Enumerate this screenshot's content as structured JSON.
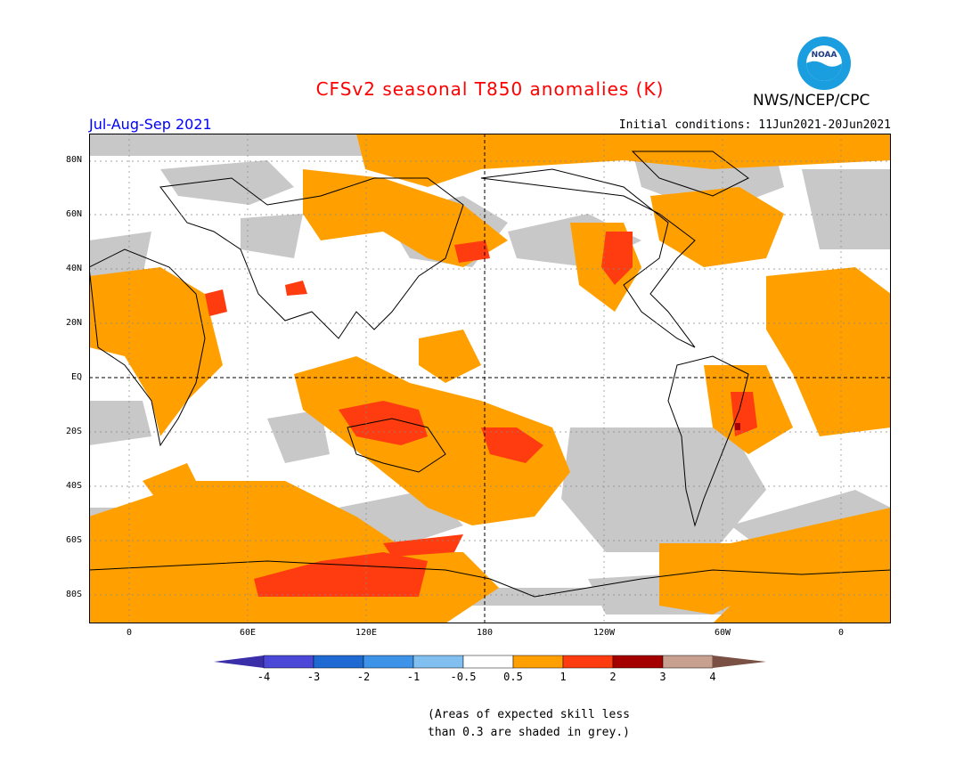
{
  "title": "CFSv2 seasonal T850 anomalies (K)",
  "organization": "NWS/NCEP/CPC",
  "logo_text": "NOAA",
  "period": "Jul-Aug-Sep 2021",
  "initial_conditions": "Initial conditions: 11Jun2021-20Jun2021",
  "lat_labels": [
    "80N",
    "60N",
    "40N",
    "20N",
    "EQ",
    "20S",
    "40S",
    "60S",
    "80S"
  ],
  "lon_labels": [
    "0",
    "60E",
    "120E",
    "180",
    "120W",
    "60W",
    "0"
  ],
  "colorbar": {
    "labels": [
      "-4",
      "-3",
      "-2",
      "-1",
      "-0.5",
      "0.5",
      "1",
      "2",
      "3",
      "4"
    ],
    "colors": [
      "#3a2fa8",
      "#4b48d8",
      "#1f6ad2",
      "#3d93e8",
      "#80bff0",
      "#ffffff",
      "#ff9f00",
      "#ff3c0f",
      "#a50000",
      "#c8a090",
      "#7a5044"
    ]
  },
  "note_line1": "(Areas of expected skill less",
  "note_line2": "than 0.3 are shaded in grey.)",
  "colors": {
    "grey": "#c8c8c8",
    "orange": "#ffa000",
    "red": "#ff3c0f",
    "darkred": "#a50000",
    "coast": "#000000"
  }
}
